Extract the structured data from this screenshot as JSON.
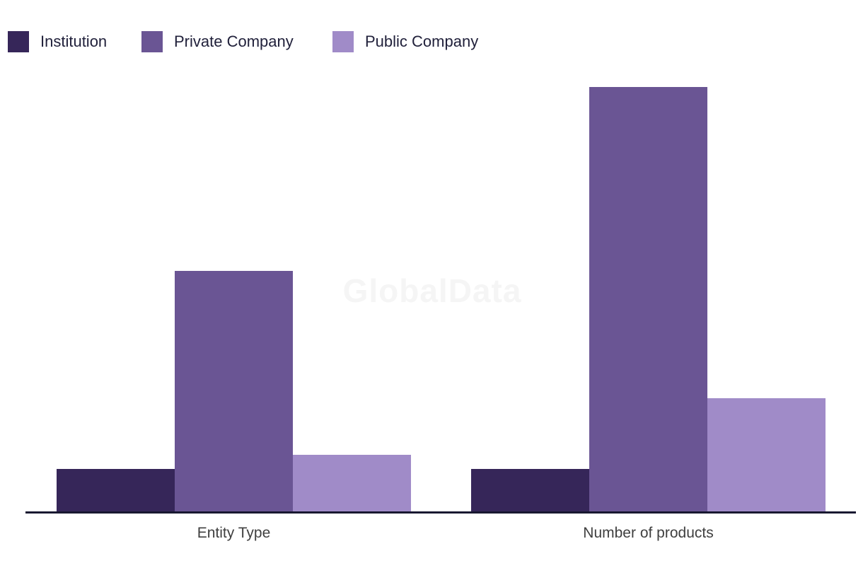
{
  "watermark": {
    "text": "GlobalData"
  },
  "legend": {
    "items": [
      {
        "label": "Institution",
        "color": "#362659"
      },
      {
        "label": "Private Company",
        "color": "#6A5594"
      },
      {
        "label": "Public Company",
        "color": "#A08BC8"
      }
    ]
  },
  "chart_data": {
    "type": "bar",
    "title": "",
    "xlabel": "",
    "ylabel": "",
    "categories": [
      "Entity Type",
      "Number of products"
    ],
    "series": [
      {
        "name": "Institution",
        "color": "#362659",
        "values": [
          3,
          3
        ]
      },
      {
        "name": "Private Company",
        "color": "#6A5594",
        "values": [
          17,
          30
        ]
      },
      {
        "name": "Public Company",
        "color": "#A08BC8",
        "values": [
          4,
          8
        ]
      }
    ],
    "ylim": [
      0,
      32
    ],
    "y_axis_visible": false,
    "gridlines": false,
    "legend_position": "top-left"
  },
  "colors": {
    "background": "#FFFFFF",
    "axis_line": "#191931",
    "category_label": "#3F3F3F",
    "legend_text": "#21213B",
    "watermark": "#F5F5F5"
  }
}
